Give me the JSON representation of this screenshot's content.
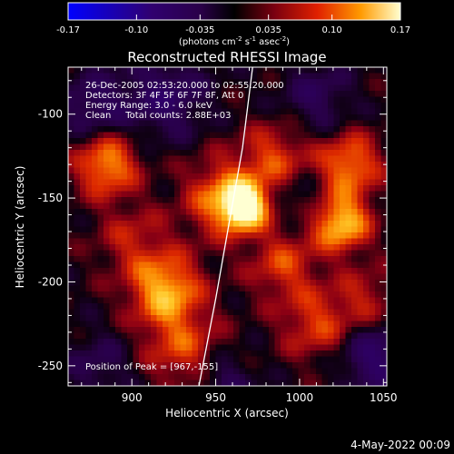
{
  "chart_data": {
    "type": "heatmap",
    "title": "Reconstructed RHESSI Image",
    "xlabel": "Heliocentric X (arcsec)",
    "ylabel": "Heliocentric Y (arcsec)",
    "xlim": [
      862,
      1052
    ],
    "ylim": [
      -262,
      -72
    ],
    "x_ticks": [
      900,
      950,
      1000,
      1050
    ],
    "y_ticks": [
      -100,
      -150,
      -200,
      -250
    ],
    "colorbar": {
      "range": [
        -0.17,
        0.17
      ],
      "ticks": [
        "-0.17",
        "-0.10",
        "-0.035",
        "0.035",
        "0.10",
        "0.17"
      ],
      "unit_label": "(photons cm",
      "unit_sup1": "-2",
      "unit_mid": " s",
      "unit_sup2": "-1",
      "unit_mid2": " asec",
      "unit_sup3": "-2",
      "unit_end": ")"
    },
    "annotations": [
      "26-Dec-2005 02:53:20.000 to 02:55:20.000",
      "Detectors: 3F 4F 5F 6F 7F 8F, Att 0",
      "Energy Range: 3.0 - 6.0 keV",
      "Clean     Total counts: 2.88E+03"
    ],
    "peak_label": "Position of Peak = [967,-155]",
    "limb_curve": [
      [
        940,
        -262
      ],
      [
        950,
        -210
      ],
      [
        958,
        -165
      ],
      [
        966,
        -120
      ],
      [
        972,
        -72
      ]
    ],
    "sources": [
      {
        "x": 967,
        "y": -155,
        "amp": 0.17,
        "sigma": 9
      },
      {
        "x": 955,
        "y": -150,
        "amp": 0.1,
        "sigma": 16
      },
      {
        "x": 985,
        "y": -125,
        "amp": 0.07,
        "sigma": 14
      },
      {
        "x": 990,
        "y": -190,
        "amp": 0.07,
        "sigma": 14
      },
      {
        "x": 885,
        "y": -130,
        "amp": 0.11,
        "sigma": 13
      },
      {
        "x": 900,
        "y": -175,
        "amp": 0.05,
        "sigma": 15
      },
      {
        "x": 920,
        "y": -205,
        "amp": 0.12,
        "sigma": 15
      },
      {
        "x": 930,
        "y": -240,
        "amp": 0.07,
        "sigma": 16
      },
      {
        "x": 1025,
        "y": -165,
        "amp": 0.13,
        "sigma": 12
      },
      {
        "x": 1030,
        "y": -130,
        "amp": 0.1,
        "sigma": 13
      },
      {
        "x": 1010,
        "y": -225,
        "amp": 0.07,
        "sigma": 15
      },
      {
        "x": 1040,
        "y": -210,
        "amp": 0.05,
        "sigma": 13
      },
      {
        "x": 878,
        "y": -95,
        "amp": -0.06,
        "sigma": 14
      },
      {
        "x": 920,
        "y": -90,
        "amp": -0.07,
        "sigma": 16
      },
      {
        "x": 1010,
        "y": -90,
        "amp": -0.05,
        "sigma": 14
      },
      {
        "x": 1045,
        "y": -245,
        "amp": -0.08,
        "sigma": 14
      },
      {
        "x": 880,
        "y": -250,
        "amp": -0.04,
        "sigma": 14
      },
      {
        "x": 955,
        "y": -260,
        "amp": -0.05,
        "sigma": 12
      },
      {
        "x": 1000,
        "y": -150,
        "amp": -0.03,
        "sigma": 10
      }
    ]
  },
  "footer": {
    "timestamp": "4-May-2022 00:09"
  }
}
